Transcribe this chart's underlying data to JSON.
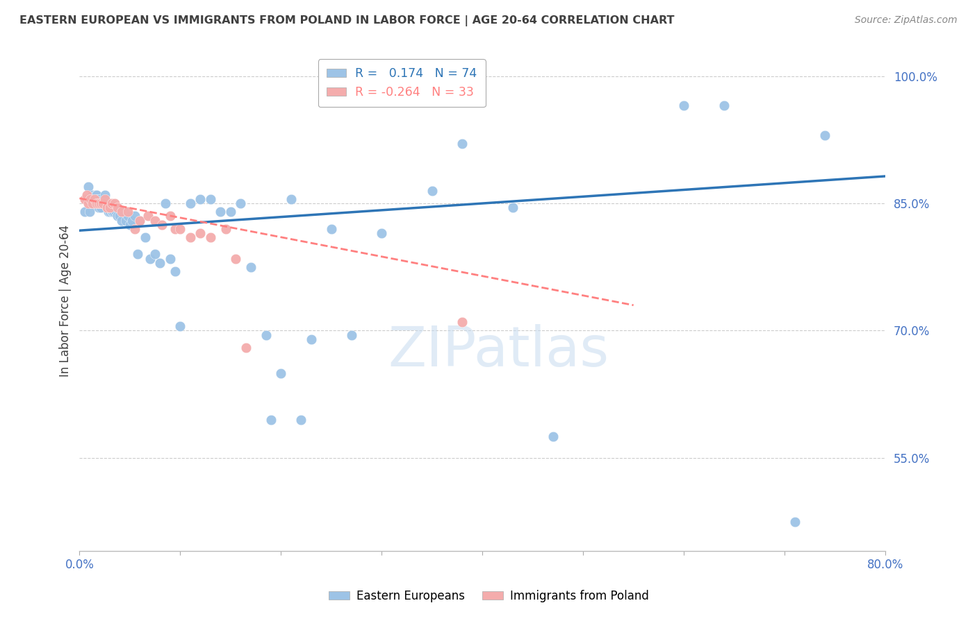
{
  "title": "EASTERN EUROPEAN VS IMMIGRANTS FROM POLAND IN LABOR FORCE | AGE 20-64 CORRELATION CHART",
  "source": "Source: ZipAtlas.com",
  "ylabel": "In Labor Force | Age 20-64",
  "xlim": [
    0.0,
    0.8
  ],
  "ylim": [
    0.44,
    1.03
  ],
  "yticks": [
    0.55,
    0.7,
    0.85,
    1.0
  ],
  "ytick_labels": [
    "55.0%",
    "70.0%",
    "85.0%",
    "100.0%"
  ],
  "xticks": [
    0.0,
    0.1,
    0.2,
    0.3,
    0.4,
    0.5,
    0.6,
    0.7,
    0.8
  ],
  "xtick_labels": [
    "0.0%",
    "",
    "",
    "",
    "",
    "",
    "",
    "",
    "80.0%"
  ],
  "blue_color": "#9DC3E6",
  "pink_color": "#F4ACAC",
  "blue_line_color": "#2E75B6",
  "pink_line_color": "#FF8080",
  "axis_color": "#4472C4",
  "grid_color": "#CCCCCC",
  "watermark": "ZIPatlas",
  "legend_r_blue": "0.174",
  "legend_n_blue": "74",
  "legend_r_pink": "-0.264",
  "legend_n_pink": "33",
  "blue_scatter_x": [
    0.005,
    0.007,
    0.009,
    0.01,
    0.011,
    0.012,
    0.013,
    0.014,
    0.015,
    0.016,
    0.017,
    0.018,
    0.019,
    0.02,
    0.021,
    0.022,
    0.023,
    0.024,
    0.025,
    0.026,
    0.027,
    0.028,
    0.029,
    0.03,
    0.031,
    0.032,
    0.033,
    0.034,
    0.035,
    0.036,
    0.038,
    0.04,
    0.042,
    0.044,
    0.046,
    0.048,
    0.05,
    0.052,
    0.055,
    0.058,
    0.06,
    0.065,
    0.07,
    0.075,
    0.08,
    0.085,
    0.09,
    0.095,
    0.1,
    0.11,
    0.12,
    0.13,
    0.14,
    0.15,
    0.16,
    0.17,
    0.185,
    0.19,
    0.2,
    0.21,
    0.22,
    0.23,
    0.25,
    0.27,
    0.3,
    0.33,
    0.35,
    0.38,
    0.43,
    0.47,
    0.6,
    0.64,
    0.71,
    0.74
  ],
  "blue_scatter_y": [
    0.84,
    0.855,
    0.87,
    0.84,
    0.855,
    0.85,
    0.86,
    0.85,
    0.855,
    0.86,
    0.86,
    0.855,
    0.845,
    0.855,
    0.845,
    0.85,
    0.85,
    0.855,
    0.86,
    0.85,
    0.845,
    0.845,
    0.84,
    0.84,
    0.845,
    0.84,
    0.84,
    0.84,
    0.845,
    0.84,
    0.835,
    0.835,
    0.83,
    0.84,
    0.83,
    0.835,
    0.825,
    0.83,
    0.835,
    0.79,
    0.83,
    0.81,
    0.785,
    0.79,
    0.78,
    0.85,
    0.785,
    0.77,
    0.705,
    0.85,
    0.855,
    0.855,
    0.84,
    0.84,
    0.85,
    0.775,
    0.695,
    0.595,
    0.65,
    0.855,
    0.595,
    0.69,
    0.82,
    0.695,
    0.815,
    0.975,
    0.865,
    0.92,
    0.845,
    0.575,
    0.965,
    0.965,
    0.475,
    0.93
  ],
  "pink_scatter_x": [
    0.005,
    0.007,
    0.009,
    0.011,
    0.013,
    0.015,
    0.017,
    0.019,
    0.021,
    0.023,
    0.025,
    0.027,
    0.03,
    0.032,
    0.035,
    0.038,
    0.042,
    0.048,
    0.055,
    0.06,
    0.068,
    0.075,
    0.082,
    0.09,
    0.095,
    0.1,
    0.11,
    0.12,
    0.13,
    0.145,
    0.155,
    0.165,
    0.38
  ],
  "pink_scatter_y": [
    0.855,
    0.86,
    0.85,
    0.855,
    0.85,
    0.855,
    0.85,
    0.85,
    0.85,
    0.85,
    0.855,
    0.845,
    0.845,
    0.85,
    0.85,
    0.845,
    0.84,
    0.84,
    0.82,
    0.83,
    0.835,
    0.83,
    0.825,
    0.835,
    0.82,
    0.82,
    0.81,
    0.815,
    0.81,
    0.82,
    0.785,
    0.68,
    0.71
  ],
  "blue_trend_x": [
    0.0,
    0.8
  ],
  "blue_trend_y": [
    0.818,
    0.882
  ],
  "pink_trend_x": [
    0.0,
    0.55
  ],
  "pink_trend_y": [
    0.856,
    0.73
  ]
}
